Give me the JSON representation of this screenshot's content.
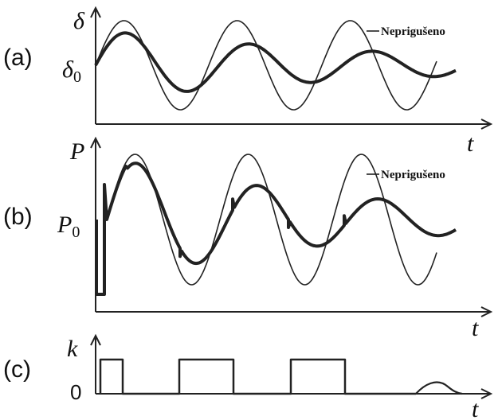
{
  "panels": {
    "a": {
      "label": "(a)",
      "y_symbol": "δ",
      "y0_symbol": "δ",
      "y0_subscript": "0",
      "x_symbol": "t",
      "annotation": "Neprigušeno"
    },
    "b": {
      "label": "(b)",
      "y_symbol": "P",
      "y0_symbol": "P",
      "y0_subscript": "0",
      "x_symbol": "t",
      "annotation": "Neprigušeno"
    },
    "c": {
      "label": "(c)",
      "y_symbol": "k",
      "y0_label": "0",
      "x_symbol": "t"
    }
  }
}
